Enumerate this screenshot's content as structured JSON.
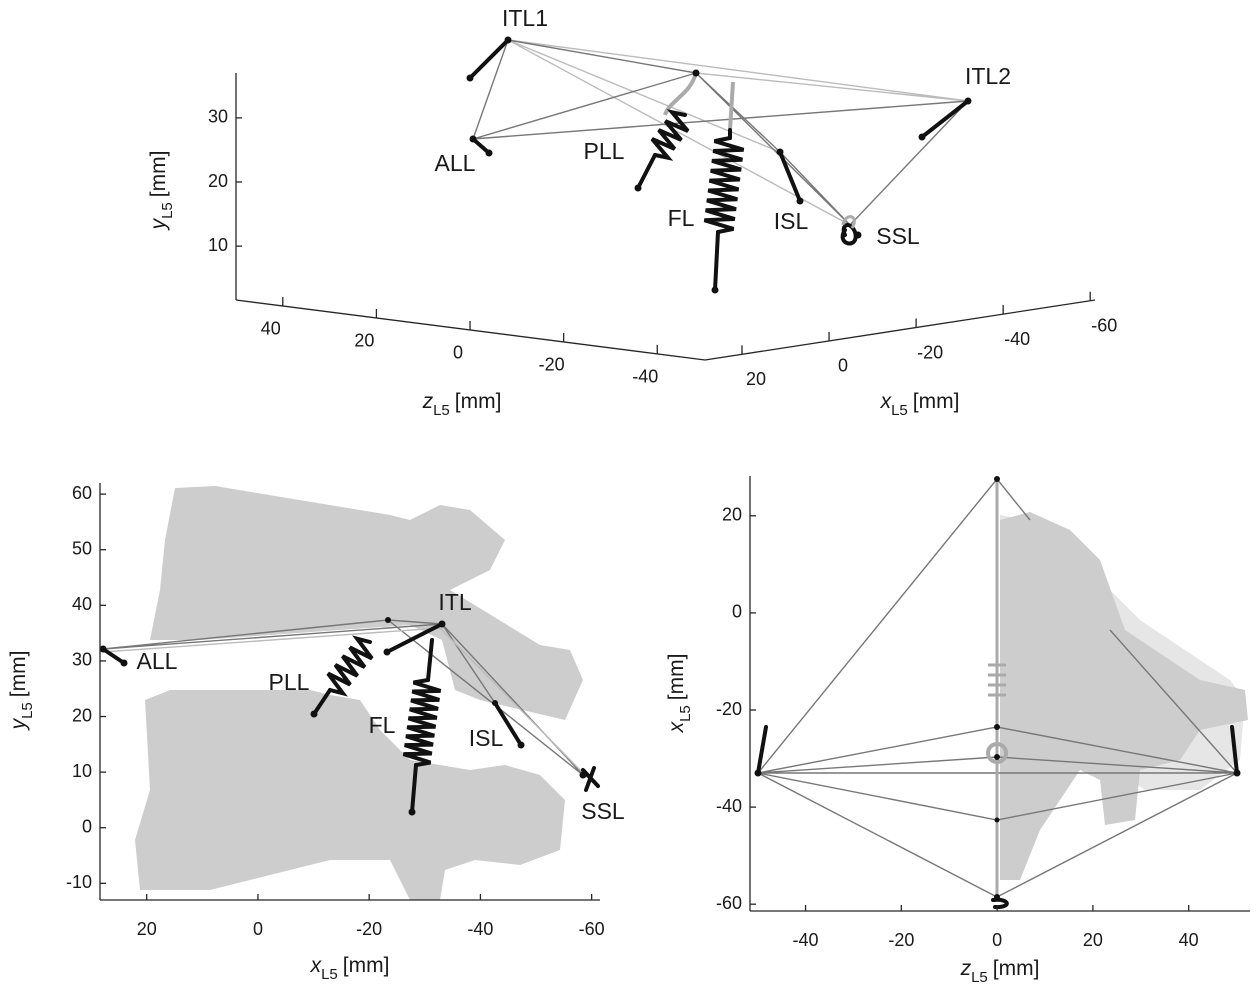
{
  "panel_3d": {
    "y_axis": {
      "label": {
        "var": "y",
        "sub": "L5",
        "unit": "[mm]"
      },
      "ticks": [
        10,
        20,
        30
      ],
      "lim": [
        1.6,
        37
      ]
    },
    "z_axis": {
      "label": {
        "var": "z",
        "sub": "L5",
        "unit": "[mm]"
      },
      "ticks": [
        40,
        20,
        0,
        -20,
        -40
      ],
      "lim": [
        50,
        -50.2
      ]
    },
    "x_axis": {
      "label": {
        "var": "x",
        "sub": "L5",
        "unit": "[mm]"
      },
      "ticks": [
        20,
        0,
        -20,
        -40,
        -60
      ],
      "lim": [
        28.5,
        -61.1
      ]
    },
    "labels": [
      "ITL1",
      "ITL2",
      "ALL",
      "PLL",
      "FL",
      "ISL",
      "SSL"
    ]
  },
  "panel_sagittal": {
    "x_axis": {
      "label": {
        "var": "x",
        "sub": "L5",
        "unit": "[mm]"
      },
      "ticks": [
        20,
        0,
        -20,
        -40,
        -60
      ],
      "lim": [
        28.4,
        -61.5
      ]
    },
    "y_axis": {
      "label": {
        "var": "y",
        "sub": "L5",
        "unit": "[mm]"
      },
      "ticks": [
        -10,
        0,
        10,
        20,
        30,
        40,
        50,
        60
      ],
      "lim": [
        -13,
        62
      ]
    },
    "labels": [
      "ALL",
      "ITL",
      "PLL",
      "FL",
      "ISL",
      "SSL"
    ]
  },
  "panel_axial": {
    "x_axis": {
      "label": {
        "var": "z",
        "sub": "L5",
        "unit": "[mm]"
      },
      "ticks": [
        -40,
        -20,
        0,
        20,
        40
      ],
      "lim": [
        -51.6,
        52.8
      ]
    },
    "y_axis": {
      "label": {
        "var": "x",
        "sub": "L5",
        "unit": "[mm]"
      },
      "ticks": [
        20,
        0,
        -20,
        -40,
        -60
      ],
      "lim": [
        -61.4,
        28.2
      ]
    }
  }
}
